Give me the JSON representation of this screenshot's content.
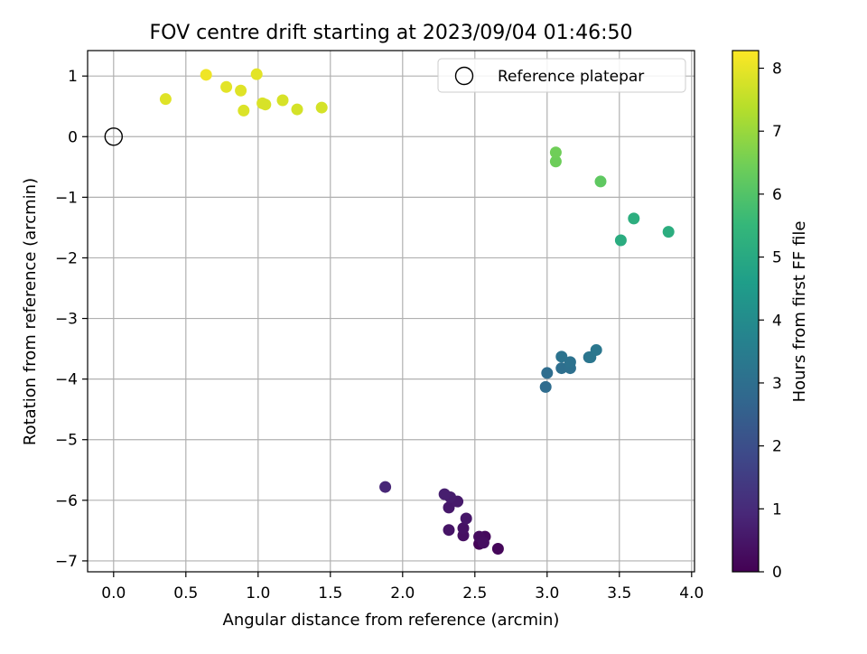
{
  "chart_data": {
    "type": "scatter",
    "title": "FOV centre drift starting at 2023/09/04 01:46:50",
    "xlabel": "Angular distance from reference (arcmin)",
    "ylabel": "Rotation from reference (arcmin)",
    "xlim": [
      -0.18,
      4.02
    ],
    "ylim": [
      -7.18,
      1.42
    ],
    "x_ticks": [
      0.0,
      0.5,
      1.0,
      1.5,
      2.0,
      2.5,
      3.0,
      3.5,
      4.0
    ],
    "x_tick_labels": [
      "0.0",
      "0.5",
      "1.0",
      "1.5",
      "2.0",
      "2.5",
      "3.0",
      "3.5",
      "4.0"
    ],
    "y_ticks": [
      1,
      0,
      -1,
      -2,
      -3,
      -4,
      -5,
      -6,
      -7
    ],
    "y_tick_labels": [
      "1",
      "0",
      "−1",
      "−2",
      "−3",
      "−4",
      "−5",
      "−6",
      "−7"
    ],
    "grid": true,
    "legend": {
      "placement": "top-right",
      "entries": [
        "Reference platepar"
      ]
    },
    "reference_point": {
      "x": 0.0,
      "y": 0.0,
      "label": "Reference platepar",
      "marker": "hollow-circle"
    },
    "colorbar": {
      "label": "Hours from first FF file",
      "colormap": "viridis",
      "range": [
        0,
        8.28
      ],
      "ticks": [
        0,
        1,
        2,
        3,
        4,
        5,
        6,
        7,
        8
      ],
      "tick_labels": [
        "0",
        "1",
        "2",
        "3",
        "4",
        "5",
        "6",
        "7",
        "8"
      ],
      "colors": [
        "#440154",
        "#482878",
        "#3e4989",
        "#31688e",
        "#26828e",
        "#1f9e89",
        "#35b779",
        "#6ece58",
        "#b5de2b",
        "#fde725"
      ]
    },
    "series": [
      {
        "points": [
          {
            "x": 2.53,
            "y": -6.72,
            "c": 0.05
          },
          {
            "x": 2.54,
            "y": -6.68,
            "c": 0.1
          },
          {
            "x": 2.66,
            "y": -6.8,
            "c": 0.15
          },
          {
            "x": 2.57,
            "y": -6.6,
            "c": 0.2
          },
          {
            "x": 2.53,
            "y": -6.6,
            "c": 0.25
          },
          {
            "x": 2.56,
            "y": -6.7,
            "c": 0.3
          },
          {
            "x": 2.42,
            "y": -6.58,
            "c": 0.35
          },
          {
            "x": 2.42,
            "y": -6.46,
            "c": 0.4
          },
          {
            "x": 2.32,
            "y": -6.49,
            "c": 0.45
          },
          {
            "x": 2.44,
            "y": -6.3,
            "c": 0.5
          },
          {
            "x": 2.32,
            "y": -6.12,
            "c": 0.55
          },
          {
            "x": 2.38,
            "y": -6.02,
            "c": 0.6
          },
          {
            "x": 2.33,
            "y": -5.95,
            "c": 0.65
          },
          {
            "x": 2.29,
            "y": -5.9,
            "c": 0.7
          },
          {
            "x": 1.88,
            "y": -5.78,
            "c": 0.9
          },
          {
            "x": 2.99,
            "y": -4.13,
            "c": 2.9
          },
          {
            "x": 3.0,
            "y": -3.9,
            "c": 2.95
          },
          {
            "x": 3.1,
            "y": -3.82,
            "c": 3.0
          },
          {
            "x": 3.16,
            "y": -3.82,
            "c": 3.05
          },
          {
            "x": 3.16,
            "y": -3.72,
            "c": 3.1
          },
          {
            "x": 3.1,
            "y": -3.63,
            "c": 3.15
          },
          {
            "x": 3.29,
            "y": -3.64,
            "c": 3.2
          },
          {
            "x": 3.3,
            "y": -3.64,
            "c": 3.25
          },
          {
            "x": 3.34,
            "y": -3.52,
            "c": 3.3
          },
          {
            "x": 3.51,
            "y": -1.71,
            "c": 5.1
          },
          {
            "x": 3.84,
            "y": -1.57,
            "c": 5.15
          },
          {
            "x": 3.6,
            "y": -1.35,
            "c": 5.2
          },
          {
            "x": 3.37,
            "y": -0.74,
            "c": 6.2
          },
          {
            "x": 3.06,
            "y": -0.41,
            "c": 6.4
          },
          {
            "x": 3.06,
            "y": -0.26,
            "c": 6.45
          },
          {
            "x": 0.36,
            "y": 0.62,
            "c": 7.9
          },
          {
            "x": 0.64,
            "y": 1.02,
            "c": 8.1
          },
          {
            "x": 0.78,
            "y": 0.82,
            "c": 7.95
          },
          {
            "x": 0.88,
            "y": 0.76,
            "c": 7.9
          },
          {
            "x": 0.9,
            "y": 0.43,
            "c": 7.85
          },
          {
            "x": 0.99,
            "y": 1.03,
            "c": 7.95
          },
          {
            "x": 1.03,
            "y": 0.55,
            "c": 7.85
          },
          {
            "x": 1.05,
            "y": 0.53,
            "c": 7.8
          },
          {
            "x": 1.17,
            "y": 0.6,
            "c": 7.8
          },
          {
            "x": 1.27,
            "y": 0.45,
            "c": 7.75
          },
          {
            "x": 1.44,
            "y": 0.48,
            "c": 7.75
          }
        ]
      }
    ]
  }
}
